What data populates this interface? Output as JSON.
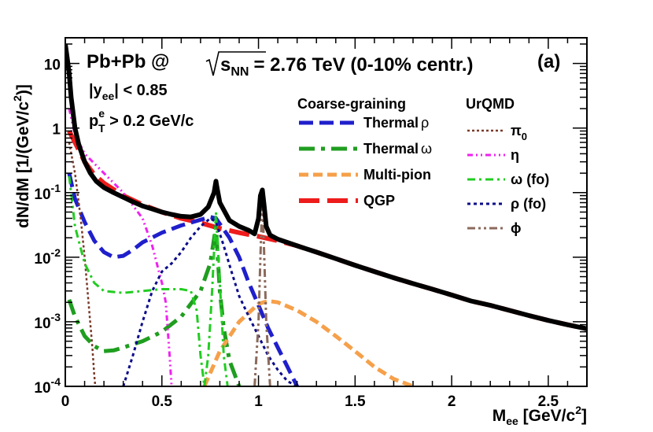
{
  "chart_data": {
    "type": "line",
    "title": "Pb+Pb @ √s_NN = 2.76 TeV (0-10% centr.)",
    "title_parts": {
      "system": "Pb+Pb @",
      "energy_sym": "s",
      "energy_sub": "NN",
      "energy_rest": "= 2.76 TeV (0-10% centr.)"
    },
    "panel_label": "(a)",
    "cuts": {
      "rapidity": {
        "main": "|y",
        "sub": "ee",
        "rest": "| < 0.85"
      },
      "pt": {
        "main": "p",
        "sup": "e",
        "sub": "T",
        "rest": " > 0.2 GeV/c"
      }
    },
    "xlabel": {
      "main": "M",
      "sub": "ee",
      "rest": " [GeV/c",
      "sup": "2",
      "close": "]"
    },
    "ylabel": {
      "main": "dN/dM [1/(GeV/c",
      "sup": "2",
      "close": ")]"
    },
    "xlim": [
      0,
      2.7
    ],
    "ylim": [
      0.0001,
      25
    ],
    "yscale": "log",
    "xticks": [
      {
        "v": 0,
        "label": "0"
      },
      {
        "v": 0.5,
        "label": "0.5"
      },
      {
        "v": 1,
        "label": "1"
      },
      {
        "v": 1.5,
        "label": "1.5"
      },
      {
        "v": 2,
        "label": "2"
      },
      {
        "v": 2.5,
        "label": "2.5"
      }
    ],
    "yticks": [
      {
        "v": 0.0001,
        "base": "10",
        "exp": "-4"
      },
      {
        "v": 0.001,
        "base": "10",
        "exp": "-3"
      },
      {
        "v": 0.01,
        "base": "10",
        "exp": "-2"
      },
      {
        "v": 0.1,
        "base": "10",
        "exp": "-1"
      },
      {
        "v": 1,
        "base": "1",
        "exp": ""
      },
      {
        "v": 10,
        "base": "10",
        "exp": ""
      }
    ],
    "legend_headers": {
      "left": "Coarse-graining",
      "right": "UrQMD"
    },
    "legend_left": [
      {
        "id": "thermal-rho",
        "label": "Thermal",
        "sym": "ρ"
      },
      {
        "id": "thermal-omega",
        "label": "Thermal",
        "sym": "ω"
      },
      {
        "id": "multi-pion",
        "label": "Multi-pion",
        "sym": ""
      },
      {
        "id": "qgp",
        "label": "QGP",
        "sym": ""
      }
    ],
    "legend_right": [
      {
        "id": "pi0",
        "label": "π",
        "sub": "0"
      },
      {
        "id": "eta",
        "label": "η",
        "sub": ""
      },
      {
        "id": "omega-fo",
        "label": "ω (fo)",
        "sub": ""
      },
      {
        "id": "rho-fo",
        "label": "ρ (fo)",
        "sub": ""
      },
      {
        "id": "phi",
        "label": "ϕ",
        "sub": ""
      }
    ],
    "series": [
      {
        "id": "total",
        "name": "Total",
        "color": "#000000",
        "dash": "",
        "width": 6,
        "points": [
          [
            0,
            20
          ],
          [
            0.01,
            12
          ],
          [
            0.02,
            7
          ],
          [
            0.03,
            3
          ],
          [
            0.05,
            1
          ],
          [
            0.07,
            0.55
          ],
          [
            0.1,
            0.3
          ],
          [
            0.13,
            0.2
          ],
          [
            0.16,
            0.15
          ],
          [
            0.2,
            0.12
          ],
          [
            0.25,
            0.1
          ],
          [
            0.3,
            0.085
          ],
          [
            0.35,
            0.072
          ],
          [
            0.4,
            0.062
          ],
          [
            0.45,
            0.056
          ],
          [
            0.5,
            0.05
          ],
          [
            0.55,
            0.046
          ],
          [
            0.6,
            0.043
          ],
          [
            0.65,
            0.042
          ],
          [
            0.7,
            0.046
          ],
          [
            0.74,
            0.06
          ],
          [
            0.77,
            0.1
          ],
          [
            0.78,
            0.15
          ],
          [
            0.785,
            0.12
          ],
          [
            0.8,
            0.07
          ],
          [
            0.85,
            0.037
          ],
          [
            0.9,
            0.03
          ],
          [
            0.95,
            0.026
          ],
          [
            0.98,
            0.023
          ],
          [
            1.0,
            0.04
          ],
          [
            1.01,
            0.09
          ],
          [
            1.02,
            0.11
          ],
          [
            1.03,
            0.06
          ],
          [
            1.04,
            0.03
          ],
          [
            1.06,
            0.022
          ],
          [
            1.1,
            0.019
          ],
          [
            1.2,
            0.015
          ],
          [
            1.3,
            0.012
          ],
          [
            1.4,
            0.0095
          ],
          [
            1.5,
            0.0075
          ],
          [
            1.6,
            0.006
          ],
          [
            1.7,
            0.0048
          ],
          [
            1.8,
            0.0039
          ],
          [
            1.9,
            0.0032
          ],
          [
            2.0,
            0.0026
          ],
          [
            2.1,
            0.0021
          ],
          [
            2.2,
            0.0018
          ],
          [
            2.3,
            0.0015
          ],
          [
            2.4,
            0.00125
          ],
          [
            2.5,
            0.00105
          ],
          [
            2.6,
            0.0009
          ],
          [
            2.7,
            0.00078
          ]
        ]
      },
      {
        "id": "qgp",
        "name": "QGP",
        "color": "#ee1c1c",
        "dash": "26,10",
        "width": 6,
        "points": [
          [
            0.02,
            0.9
          ],
          [
            0.05,
            0.6
          ],
          [
            0.1,
            0.3
          ],
          [
            0.15,
            0.19
          ],
          [
            0.2,
            0.14
          ],
          [
            0.3,
            0.09
          ],
          [
            0.4,
            0.065
          ],
          [
            0.5,
            0.05
          ],
          [
            0.6,
            0.04
          ],
          [
            0.7,
            0.034
          ],
          [
            0.8,
            0.028
          ],
          [
            0.9,
            0.024
          ],
          [
            1.0,
            0.021
          ],
          [
            1.1,
            0.018
          ],
          [
            1.2,
            0.015
          ],
          [
            1.3,
            0.012
          ],
          [
            1.4,
            0.0095
          ],
          [
            1.5,
            0.0075
          ],
          [
            1.6,
            0.006
          ],
          [
            1.7,
            0.0048
          ],
          [
            1.8,
            0.0039
          ],
          [
            1.9,
            0.0032
          ],
          [
            2.0,
            0.0026
          ],
          [
            2.1,
            0.0021
          ],
          [
            2.2,
            0.0018
          ],
          [
            2.3,
            0.0015
          ],
          [
            2.4,
            0.00125
          ],
          [
            2.5,
            0.00105
          ],
          [
            2.6,
            0.0009
          ],
          [
            2.7,
            0.00078
          ]
        ]
      },
      {
        "id": "thermal-rho",
        "name": "Thermal ρ",
        "color": "#1f1fcc",
        "dash": "18,8",
        "width": 5,
        "points": [
          [
            0.02,
            0.2
          ],
          [
            0.05,
            0.08
          ],
          [
            0.1,
            0.035
          ],
          [
            0.15,
            0.018
          ],
          [
            0.2,
            0.012
          ],
          [
            0.25,
            0.01
          ],
          [
            0.3,
            0.0105
          ],
          [
            0.35,
            0.013
          ],
          [
            0.4,
            0.017
          ],
          [
            0.5,
            0.024
          ],
          [
            0.6,
            0.031
          ],
          [
            0.7,
            0.038
          ],
          [
            0.75,
            0.042
          ],
          [
            0.78,
            0.04
          ],
          [
            0.85,
            0.02
          ],
          [
            0.9,
            0.01
          ],
          [
            0.95,
            0.004
          ],
          [
            1.0,
            0.0018
          ],
          [
            1.05,
            0.0008
          ],
          [
            1.1,
            0.0004
          ],
          [
            1.15,
            0.0002
          ],
          [
            1.2,
            0.0001
          ]
        ]
      },
      {
        "id": "thermal-omega",
        "name": "Thermal ω",
        "color": "#1f9e1f",
        "dash": "20,8,5,8",
        "width": 5,
        "points": [
          [
            0.02,
            0.0022
          ],
          [
            0.05,
            0.0012
          ],
          [
            0.1,
            0.0006
          ],
          [
            0.15,
            0.00042
          ],
          [
            0.2,
            0.00035
          ],
          [
            0.25,
            0.00036
          ],
          [
            0.3,
            0.0004
          ],
          [
            0.4,
            0.0005
          ],
          [
            0.5,
            0.0007
          ],
          [
            0.6,
            0.0012
          ],
          [
            0.7,
            0.003
          ],
          [
            0.75,
            0.008
          ],
          [
            0.78,
            0.03
          ],
          [
            0.8,
            0.003
          ],
          [
            0.82,
            0.0008
          ],
          [
            0.85,
            0.00025
          ],
          [
            0.9,
            0.0001
          ]
        ]
      },
      {
        "id": "multi-pion",
        "name": "Multi-pion",
        "color": "#f6a04a",
        "dash": "12,6",
        "width": 5,
        "points": [
          [
            0.72,
            0.0001
          ],
          [
            0.8,
            0.00035
          ],
          [
            0.9,
            0.001
          ],
          [
            1.0,
            0.0019
          ],
          [
            1.05,
            0.0021
          ],
          [
            1.1,
            0.002
          ],
          [
            1.2,
            0.0015
          ],
          [
            1.3,
            0.001
          ],
          [
            1.4,
            0.0006
          ],
          [
            1.5,
            0.00035
          ],
          [
            1.6,
            0.0002
          ],
          [
            1.7,
            0.00013
          ],
          [
            1.8,
            0.0001
          ]
        ]
      },
      {
        "id": "pi0",
        "name": "π0",
        "color": "#7a3a2a",
        "dash": "3,3",
        "width": 2.5,
        "points": [
          [
            0.02,
            0.6
          ],
          [
            0.05,
            0.2
          ],
          [
            0.08,
            0.04
          ],
          [
            0.1,
            0.01
          ],
          [
            0.12,
            0.002
          ],
          [
            0.14,
            0.0004
          ],
          [
            0.15,
            0.00015
          ],
          [
            0.155,
            0.0001
          ]
        ]
      },
      {
        "id": "eta",
        "name": "η",
        "color": "#ee22ee",
        "dash": "7,4,2,4,2,4",
        "width": 3,
        "points": [
          [
            0.02,
            2
          ],
          [
            0.05,
            0.8
          ],
          [
            0.1,
            0.4
          ],
          [
            0.2,
            0.2
          ],
          [
            0.3,
            0.1
          ],
          [
            0.4,
            0.04
          ],
          [
            0.45,
            0.015
          ],
          [
            0.5,
            0.004
          ],
          [
            0.52,
            0.002
          ],
          [
            0.54,
            0.0003
          ],
          [
            0.55,
            0.0001
          ]
        ]
      },
      {
        "id": "omega-fo",
        "name": "ω (fo)",
        "color": "#22cc22",
        "dash": "10,5,3,5",
        "width": 3,
        "points": [
          [
            0.02,
            0.18
          ],
          [
            0.05,
            0.03
          ],
          [
            0.1,
            0.008
          ],
          [
            0.15,
            0.004
          ],
          [
            0.2,
            0.003
          ],
          [
            0.3,
            0.0028
          ],
          [
            0.4,
            0.003
          ],
          [
            0.5,
            0.0032
          ],
          [
            0.6,
            0.0032
          ],
          [
            0.65,
            0.003
          ],
          [
            0.68,
            0.0015
          ],
          [
            0.7,
            0.0003
          ],
          [
            0.72,
            0.0001
          ],
          [
            0.74,
            0.0003
          ],
          [
            0.76,
            0.003
          ],
          [
            0.78,
            0.05
          ],
          [
            0.8,
            0.004
          ],
          [
            0.82,
            0.0003
          ],
          [
            0.84,
            0.0001
          ]
        ]
      },
      {
        "id": "rho-fo",
        "name": "ρ (fo)",
        "color": "#0c0c8a",
        "dash": "4,4",
        "width": 3,
        "points": [
          [
            0.3,
            0.0001
          ],
          [
            0.35,
            0.0003
          ],
          [
            0.4,
            0.001
          ],
          [
            0.45,
            0.003
          ],
          [
            0.5,
            0.006
          ],
          [
            0.55,
            0.008
          ],
          [
            0.6,
            0.012
          ],
          [
            0.65,
            0.02
          ],
          [
            0.7,
            0.03
          ],
          [
            0.75,
            0.04
          ],
          [
            0.78,
            0.035
          ],
          [
            0.82,
            0.015
          ],
          [
            0.86,
            0.006
          ],
          [
            0.9,
            0.0025
          ],
          [
            0.95,
            0.0012
          ],
          [
            1.0,
            0.0006
          ],
          [
            1.05,
            0.0003
          ],
          [
            1.1,
            0.00018
          ],
          [
            1.15,
            0.00012
          ],
          [
            1.2,
            0.0001
          ]
        ]
      },
      {
        "id": "phi",
        "name": "ϕ",
        "color": "#8b6a5c",
        "dash": "10,4,3,4,3,4",
        "width": 3,
        "points": [
          [
            0.98,
            0.0001
          ],
          [
            1.0,
            0.001
          ],
          [
            1.01,
            0.01
          ],
          [
            1.02,
            0.09
          ],
          [
            1.03,
            0.01
          ],
          [
            1.04,
            0.001
          ],
          [
            1.06,
            0.0001
          ]
        ]
      }
    ]
  }
}
